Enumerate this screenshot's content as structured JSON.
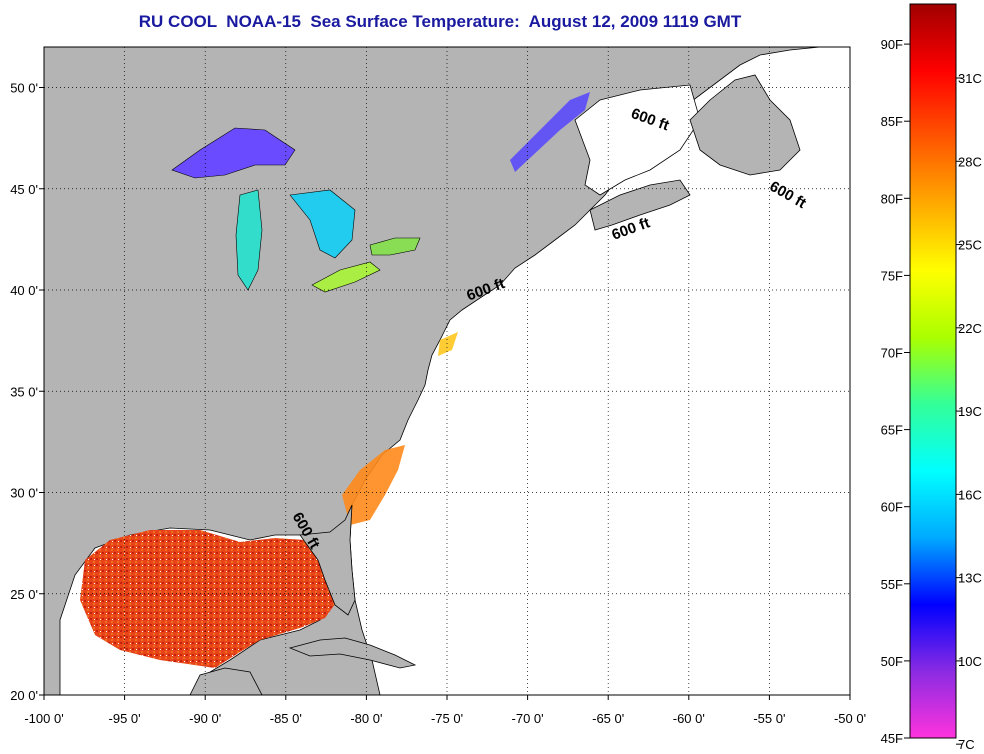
{
  "title": "RU COOL  NOAA-15  Sea Surface Temperature:  August 12, 2009 1119 GMT",
  "map": {
    "lon_range": [
      -100,
      -50
    ],
    "lat_range": [
      20,
      52
    ],
    "lon_ticks": [
      {
        "value": -100,
        "label": "-100 0'"
      },
      {
        "value": -95,
        "label": "-95 0'"
      },
      {
        "value": -90,
        "label": "-90 0'"
      },
      {
        "value": -85,
        "label": "-85 0'"
      },
      {
        "value": -80,
        "label": "-80 0'"
      },
      {
        "value": -75,
        "label": "-75 0'"
      },
      {
        "value": -70,
        "label": "-70 0'"
      },
      {
        "value": -65,
        "label": "-65 0'"
      },
      {
        "value": -60,
        "label": "-60 0'"
      },
      {
        "value": -55,
        "label": "-55 0'"
      },
      {
        "value": -50,
        "label": "-50 0'"
      }
    ],
    "lat_ticks": [
      {
        "value": 20,
        "label": "20 0'"
      },
      {
        "value": 25,
        "label": "25 0'"
      },
      {
        "value": 30,
        "label": "30 0'"
      },
      {
        "value": 35,
        "label": "35 0'"
      },
      {
        "value": 40,
        "label": "40 0'"
      },
      {
        "value": 45,
        "label": "45 0'"
      },
      {
        "value": 50,
        "label": "50 0'"
      }
    ],
    "grid": "dotted",
    "land_color": "#b4b4b4",
    "ocean_color": "#ffffff",
    "contour_labels": [
      {
        "text": "600 ft",
        "lon": -62.5,
        "lat": 48.2
      },
      {
        "text": "600 ft",
        "lon": -54.0,
        "lat": 44.5
      },
      {
        "text": "600 ft",
        "lon": -63.5,
        "lat": 42.8
      },
      {
        "text": "600 ft",
        "lon": -72.5,
        "lat": 39.8
      },
      {
        "text": "600 ft",
        "lon": -84.0,
        "lat": 28.0
      }
    ]
  },
  "colorbar": {
    "f_ticks": [
      {
        "value": 90,
        "label": "90F"
      },
      {
        "value": 85,
        "label": "85F"
      },
      {
        "value": 80,
        "label": "80F"
      },
      {
        "value": 75,
        "label": "75F"
      },
      {
        "value": 70,
        "label": "70F"
      },
      {
        "value": 65,
        "label": "65F"
      },
      {
        "value": 60,
        "label": "60F"
      },
      {
        "value": 55,
        "label": "55F"
      },
      {
        "value": 50,
        "label": "50F"
      },
      {
        "value": 45,
        "label": "45F"
      }
    ],
    "c_ticks": [
      {
        "value": 31,
        "label": "31C"
      },
      {
        "value": 28,
        "label": "28C"
      },
      {
        "value": 25,
        "label": "25C"
      },
      {
        "value": 22,
        "label": "22C"
      },
      {
        "value": 19,
        "label": "19C"
      },
      {
        "value": 16,
        "label": "16C"
      },
      {
        "value": 13,
        "label": "13C"
      },
      {
        "value": 10,
        "label": "10C"
      },
      {
        "value": 7,
        "label": "7C"
      }
    ],
    "range_f": [
      45,
      92.6
    ],
    "colors": [
      "#ff33dd",
      "#8a2be2",
      "#0000ff",
      "#00aaff",
      "#00ffff",
      "#33ff99",
      "#aaff00",
      "#ffff00",
      "#ffaa00",
      "#ff5500",
      "#ff0000",
      "#a00000"
    ]
  }
}
